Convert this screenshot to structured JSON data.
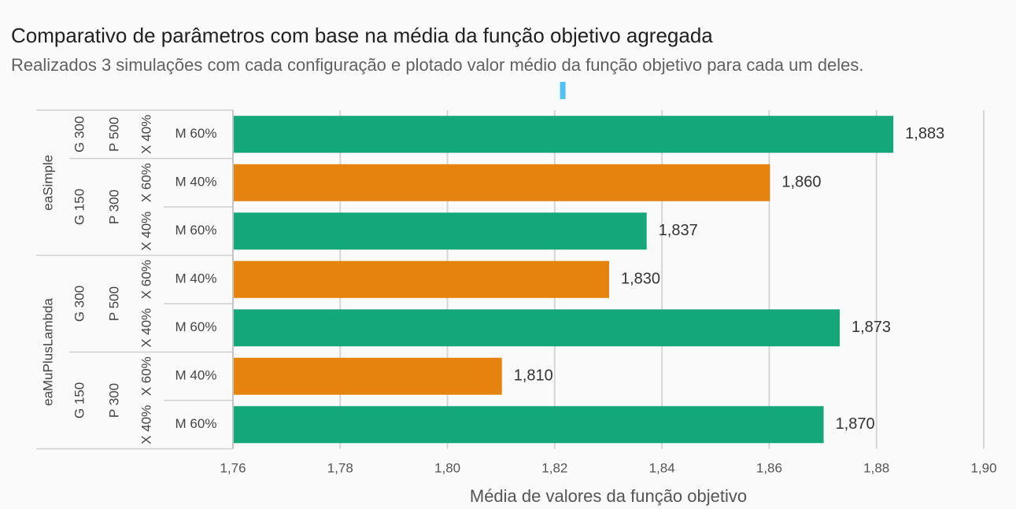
{
  "header": {
    "title": "Comparativo de parâmetros com base na média da função objetivo agregada",
    "subtitle": "Realizados 3 simulações com cada configuração e plotado valor médio da função objetivo para cada um deles."
  },
  "chart_data": {
    "type": "bar",
    "orientation": "horizontal",
    "title": "Comparativo de parâmetros com base na média da função objetivo agregada",
    "subtitle": "Realizados 3 simulações com cada configuração e plotado valor médio da função objetivo para cada um deles.",
    "xlabel": "Média de valores da função objetivo",
    "ylabel": "",
    "xlim": [
      1.76,
      1.9
    ],
    "xticks": [
      1.76,
      1.78,
      1.8,
      1.82,
      1.84,
      1.86,
      1.88,
      1.9
    ],
    "xtick_labels": [
      "1,76",
      "1,78",
      "1,80",
      "1,82",
      "1,84",
      "1,86",
      "1,88",
      "1,90"
    ],
    "colors": {
      "M 60%": "#14a77a",
      "M 40%": "#e6820e",
      "marker": "#4fc3f7"
    },
    "marker_value": 1.8215,
    "algorithms": [
      {
        "label": "eaSimple",
        "rows": 3
      },
      {
        "label": "eaMuPlusLambda",
        "rows": 4
      }
    ],
    "generations": [
      {
        "label": "G 300",
        "rows": 1
      },
      {
        "label": "G 150",
        "rows": 2
      },
      {
        "label": "G 300",
        "rows": 2
      },
      {
        "label": "G 150",
        "rows": 2
      }
    ],
    "populations": [
      {
        "label": "P 500",
        "rows": 1
      },
      {
        "label": "P 300",
        "rows": 2
      },
      {
        "label": "P 500",
        "rows": 2
      },
      {
        "label": "P 300",
        "rows": 2
      }
    ],
    "crossover": [
      "X 40%",
      "X 60%",
      "X 40%",
      "X 60%",
      "X 40%",
      "X 60%",
      "X 40%"
    ],
    "categories": [
      "M 60%",
      "M 40%",
      "M 60%",
      "M 40%",
      "M 60%",
      "M 40%",
      "M 60%"
    ],
    "values": [
      1.883,
      1.86,
      1.837,
      1.83,
      1.873,
      1.81,
      1.87
    ],
    "value_labels": [
      "1,883",
      "1,860",
      "1,837",
      "1,830",
      "1,873",
      "1,810",
      "1,870"
    ]
  }
}
